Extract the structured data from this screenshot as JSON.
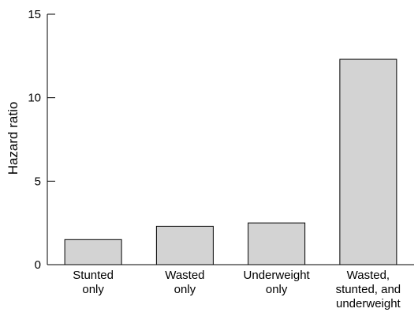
{
  "chart_data": {
    "type": "bar",
    "categories": [
      [
        "Stunted",
        "only"
      ],
      [
        "Wasted",
        "only"
      ],
      [
        "Underweight",
        "only"
      ],
      [
        "Wasted,",
        "stunted, and",
        "underweight"
      ]
    ],
    "values": [
      1.5,
      2.3,
      2.5,
      12.3
    ],
    "title": "",
    "xlabel": "",
    "ylabel": "Hazard ratio",
    "ylim": [
      0,
      15
    ],
    "yticks": [
      0,
      5,
      10,
      15
    ],
    "bar_color": "#d3d3d3",
    "grid": false,
    "legend": "none"
  }
}
